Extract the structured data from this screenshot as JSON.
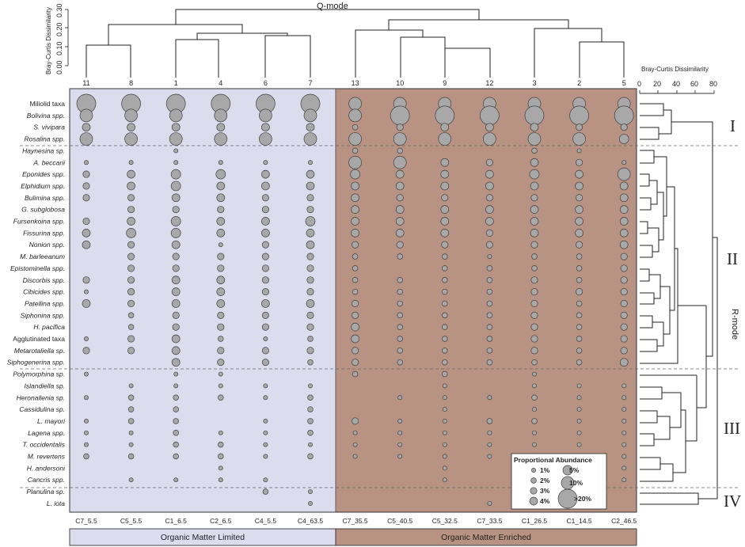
{
  "chart_data": {
    "type": "bubble-matrix",
    "q_title": "Q-mode",
    "r_title": "R-mode",
    "q_axis_label": "Bray-Curtis Dissimilarity",
    "q_axis_ticks": [
      "0.00",
      "0.10",
      "0.20",
      "0.30"
    ],
    "r_axis_label": "Bray-Curtis Dissimilarity",
    "r_axis_ticks": [
      "0",
      "20",
      "40",
      "60",
      "80"
    ],
    "cluster_numbers": [
      "11",
      "8",
      "1",
      "4",
      "6",
      "7",
      "13",
      "10",
      "9",
      "12",
      "3",
      "2",
      "5"
    ],
    "samples": [
      "C7_5.5",
      "C5_5.5",
      "C1_6.5",
      "C2_6.5",
      "C4_5.5",
      "C4_63.5",
      "C7_35.5",
      "C5_40.5",
      "C5_32.5",
      "C7_33.5",
      "C1_26.5",
      "C1_14.5",
      "C2_46.5"
    ],
    "groups": [
      {
        "label": "Organic Matter Limited",
        "color": "#dcdcef"
      },
      {
        "label": "Organic Matter Enriched",
        "color": "#b89383"
      }
    ],
    "taxa": [
      {
        "name": "Miliolid taxa",
        "italic": false
      },
      {
        "name": "Bolivina spp.",
        "italic": true
      },
      {
        "name": "S. vivipara",
        "italic": true
      },
      {
        "name": "Rosalina spp.",
        "italic": true
      },
      {
        "name": "Haynesina sp.",
        "italic": true
      },
      {
        "name": "A. beccarii",
        "italic": true
      },
      {
        "name": "Eponides spp.",
        "italic": true
      },
      {
        "name": "Elphidium spp.",
        "italic": true
      },
      {
        "name": "Bulimina spp.",
        "italic": true
      },
      {
        "name": "G. subglobosa",
        "italic": true
      },
      {
        "name": "Fursenkoina spp.",
        "italic": true
      },
      {
        "name": "Fissurina spp.",
        "italic": true
      },
      {
        "name": "Nonion spp.",
        "italic": true
      },
      {
        "name": "M. barleeanum",
        "italic": true
      },
      {
        "name": "Epistominella spp.",
        "italic": true
      },
      {
        "name": "Discorbis spp.",
        "italic": true
      },
      {
        "name": "Cibicides spp.",
        "italic": true
      },
      {
        "name": "Patellina spp.",
        "italic": true
      },
      {
        "name": "Siphonina spp.",
        "italic": true
      },
      {
        "name": "H. pacifica",
        "italic": true
      },
      {
        "name": "Agglutinated taxa",
        "italic": false
      },
      {
        "name": "Metarotaliella sp.",
        "italic": true
      },
      {
        "name": "Siphogenerina spp.",
        "italic": true
      },
      {
        "name": "Polymorphina sp.",
        "italic": true
      },
      {
        "name": "Islandiella sp.",
        "italic": true
      },
      {
        "name": "Heronallenia sp.",
        "italic": true
      },
      {
        "name": "Cassidulina sp.",
        "italic": true
      },
      {
        "name": "L. mayori",
        "italic": true
      },
      {
        "name": "Lagena spp.",
        "italic": true
      },
      {
        "name": "T. occidentalis",
        "italic": true
      },
      {
        "name": "M. revertens",
        "italic": true
      },
      {
        "name": "H. andersoni",
        "italic": true
      },
      {
        "name": "Cancris spp.",
        "italic": true
      },
      {
        "name": "Planulina sp.",
        "italic": true
      },
      {
        "name": "L. iota",
        "italic": true
      }
    ],
    "abundance_classes": [
      0,
      1,
      2,
      3,
      4,
      5,
      10,
      20
    ],
    "abundance": [
      [
        20,
        20,
        20,
        20,
        20,
        20,
        10,
        10,
        10,
        10,
        10,
        10,
        10
      ],
      [
        10,
        10,
        10,
        10,
        10,
        10,
        10,
        20,
        20,
        20,
        20,
        20,
        20
      ],
      [
        4,
        4,
        4,
        4,
        4,
        4,
        2,
        3,
        4,
        4,
        4,
        3,
        3
      ],
      [
        10,
        10,
        10,
        10,
        10,
        10,
        10,
        10,
        10,
        10,
        10,
        10,
        5
      ],
      [
        0,
        0,
        1,
        0,
        0,
        0,
        2,
        2,
        0,
        0,
        2,
        1,
        0
      ],
      [
        1,
        1,
        1,
        1,
        1,
        1,
        10,
        10,
        4,
        3,
        4,
        3,
        1
      ],
      [
        3,
        4,
        5,
        5,
        4,
        4,
        5,
        4,
        4,
        4,
        5,
        4,
        10
      ],
      [
        3,
        4,
        5,
        4,
        4,
        4,
        4,
        4,
        4,
        4,
        4,
        4,
        4
      ],
      [
        3,
        3,
        4,
        4,
        3,
        3,
        4,
        3,
        3,
        3,
        3,
        3,
        4
      ],
      [
        0,
        3,
        3,
        3,
        3,
        3,
        4,
        4,
        4,
        4,
        4,
        4,
        4
      ],
      [
        3,
        4,
        5,
        4,
        4,
        5,
        4,
        4,
        4,
        4,
        4,
        4,
        4
      ],
      [
        4,
        5,
        5,
        4,
        4,
        4,
        4,
        4,
        4,
        3,
        4,
        4,
        4
      ],
      [
        4,
        3,
        4,
        1,
        3,
        4,
        3,
        3,
        3,
        3,
        3,
        3,
        4
      ],
      [
        0,
        3,
        3,
        3,
        3,
        3,
        2,
        2,
        2,
        1,
        2,
        2,
        3
      ],
      [
        0,
        3,
        3,
        3,
        3,
        3,
        2,
        0,
        2,
        2,
        2,
        2,
        3
      ],
      [
        3,
        3,
        4,
        4,
        3,
        3,
        2,
        2,
        2,
        2,
        3,
        2,
        3
      ],
      [
        1,
        3,
        4,
        4,
        3,
        3,
        2,
        2,
        2,
        2,
        3,
        3,
        3
      ],
      [
        4,
        3,
        4,
        4,
        4,
        4,
        3,
        2,
        2,
        2,
        3,
        2,
        3
      ],
      [
        0,
        2,
        3,
        3,
        3,
        3,
        3,
        2,
        2,
        2,
        3,
        2,
        3
      ],
      [
        0,
        2,
        3,
        3,
        3,
        3,
        4,
        2,
        2,
        2,
        3,
        2,
        3
      ],
      [
        1,
        3,
        4,
        2,
        1,
        2,
        4,
        2,
        2,
        2,
        3,
        2,
        3
      ],
      [
        3,
        3,
        4,
        3,
        3,
        3,
        3,
        2,
        2,
        2,
        3,
        2,
        3
      ],
      [
        0,
        0,
        4,
        3,
        3,
        2,
        3,
        2,
        2,
        2,
        2,
        2,
        4
      ],
      [
        1,
        0,
        1,
        1,
        0,
        0,
        2,
        0,
        2,
        0,
        1,
        0,
        0
      ],
      [
        0,
        1,
        1,
        1,
        1,
        1,
        0,
        0,
        1,
        0,
        1,
        1,
        1
      ],
      [
        1,
        2,
        2,
        2,
        1,
        2,
        0,
        1,
        1,
        1,
        2,
        1,
        1
      ],
      [
        0,
        2,
        2,
        0,
        0,
        2,
        0,
        0,
        1,
        0,
        1,
        1,
        1
      ],
      [
        1,
        2,
        2,
        0,
        1,
        2,
        3,
        1,
        1,
        2,
        2,
        1,
        1
      ],
      [
        1,
        1,
        2,
        1,
        1,
        2,
        1,
        1,
        1,
        1,
        1,
        1,
        1
      ],
      [
        1,
        1,
        2,
        2,
        1,
        1,
        1,
        1,
        1,
        1,
        1,
        1,
        1
      ],
      [
        2,
        2,
        2,
        2,
        1,
        2,
        1,
        1,
        1,
        1,
        2,
        1,
        1
      ],
      [
        0,
        0,
        0,
        1,
        0,
        0,
        0,
        0,
        1,
        0,
        0,
        1,
        1
      ],
      [
        0,
        1,
        1,
        1,
        1,
        0,
        0,
        0,
        1,
        0,
        0,
        1,
        1
      ],
      [
        0,
        0,
        0,
        0,
        2,
        1,
        0,
        0,
        0,
        0,
        0,
        0,
        0
      ],
      [
        0,
        0,
        0,
        0,
        0,
        1,
        0,
        0,
        0,
        1,
        0,
        0,
        0
      ]
    ],
    "separator_after_rows": [
      3,
      22,
      32
    ],
    "cluster_roman": [
      "I",
      "II",
      "III",
      "IV"
    ],
    "legend": {
      "title": "Proportional Abundance",
      "items": [
        {
          "label": "1%",
          "value": 1
        },
        {
          "label": "2%",
          "value": 2
        },
        {
          "label": "3%",
          "value": 3
        },
        {
          "label": "4%",
          "value": 4
        },
        {
          "label": "5%",
          "value": 5
        },
        {
          "label": "10%",
          "value": 10
        },
        {
          "label": ">20%",
          "value": 20
        }
      ]
    },
    "colors": {
      "bubble_fill": "#a8a8a8",
      "bubble_stroke": "#404040",
      "limited_bg": "#dcdcef",
      "enriched_bg": "#b89383"
    }
  }
}
